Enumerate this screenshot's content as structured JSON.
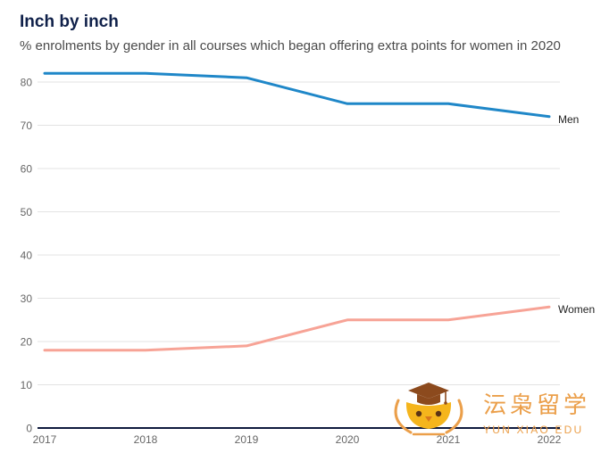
{
  "chart_data": {
    "type": "line",
    "title": "Inch by inch",
    "subtitle": "% enrolments by gender in all courses which began offering extra points for women in 2020",
    "x": [
      2017,
      2018,
      2019,
      2020,
      2021,
      2022
    ],
    "series": [
      {
        "name": "Men",
        "values": [
          82,
          82,
          81,
          75,
          75,
          72
        ],
        "color": "#1f87c8"
      },
      {
        "name": "Women",
        "values": [
          18,
          18,
          19,
          25,
          25,
          28
        ],
        "color": "#f7a396"
      }
    ],
    "yticks": [
      0,
      10,
      20,
      30,
      40,
      50,
      60,
      70,
      80
    ],
    "ylim": [
      0,
      80
    ],
    "xlim": [
      2017,
      2022
    ],
    "grid": true,
    "legend": "right"
  },
  "colors": {
    "title": "#10214a",
    "gridline": "#e3e3e3",
    "baseline": "#0f1a3d",
    "watermark": "#eb9f4a",
    "watermark_cap": "#8c4a1d",
    "watermark_face": "#f5b51c",
    "watermark_eye": "#5b3416",
    "watermark_beak": "#d9781c"
  },
  "watermark": {
    "name_cn": "沄枭留学",
    "name_en": "YUN XIAO EDU",
    "icon": "graduation-cap-owl-icon"
  }
}
